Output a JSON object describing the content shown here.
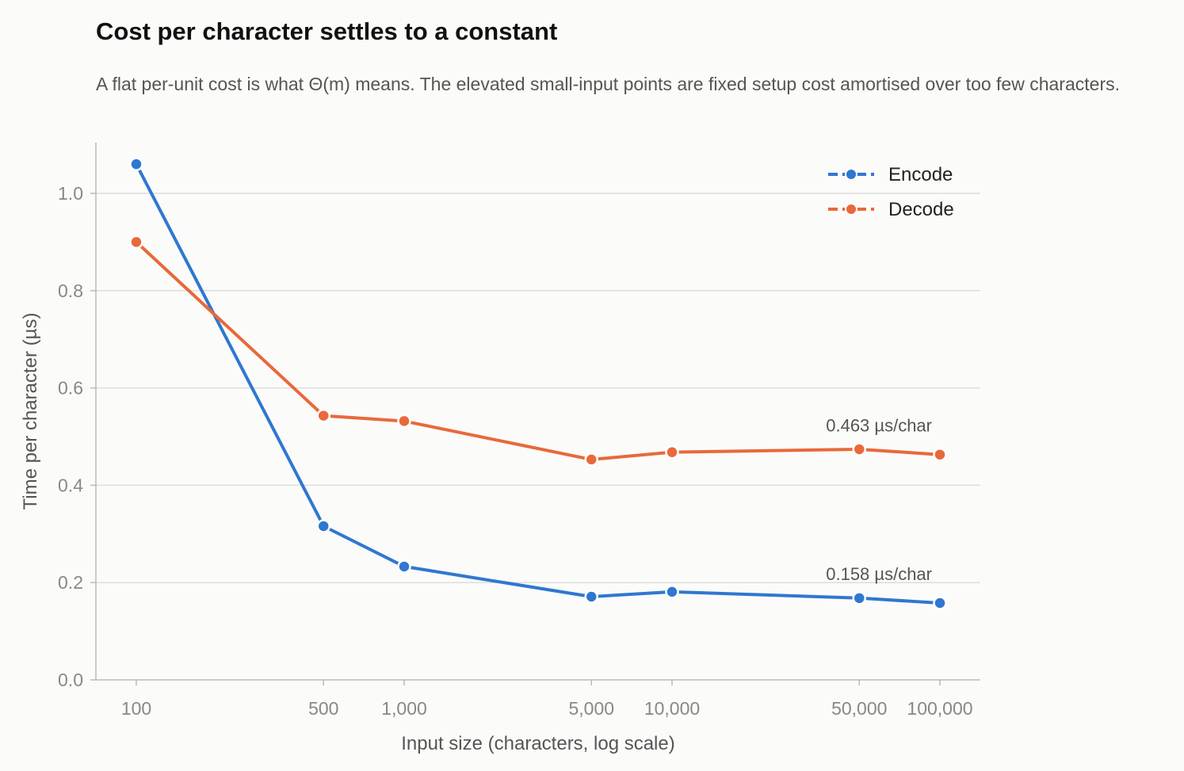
{
  "chart_data": {
    "type": "line",
    "title": "Cost per character settles to a constant",
    "subtitle": "A flat per-unit cost is what Θ(m) means. The elevated small-input points are fixed setup cost amortised over too few characters.",
    "xlabel": "Input size (characters, log scale)",
    "ylabel": "Time per character (µs)",
    "x_scale": "log",
    "x": [
      100,
      500,
      1000,
      5000,
      10000,
      50000,
      100000
    ],
    "x_tick_labels": [
      "100",
      "500",
      "1,000",
      "5,000",
      "10,000",
      "50,000",
      "100,000"
    ],
    "ylim": [
      0,
      1.1
    ],
    "y_ticks": [
      0.0,
      0.2,
      0.4,
      0.6,
      0.8,
      1.0
    ],
    "y_tick_labels": [
      "0.0",
      "0.2",
      "0.4",
      "0.6",
      "0.8",
      "1.0"
    ],
    "grid": "horizontal",
    "legend_position": "top-right",
    "series": [
      {
        "name": "Encode",
        "color": "#2f77d0",
        "values": [
          1.06,
          0.316,
          0.233,
          0.171,
          0.181,
          0.168,
          0.158
        ],
        "annotation": "0.158 µs/char"
      },
      {
        "name": "Decode",
        "color": "#e8693a",
        "values": [
          0.9,
          0.543,
          0.532,
          0.453,
          0.468,
          0.474,
          0.463
        ],
        "annotation": "0.463 µs/char"
      }
    ]
  }
}
